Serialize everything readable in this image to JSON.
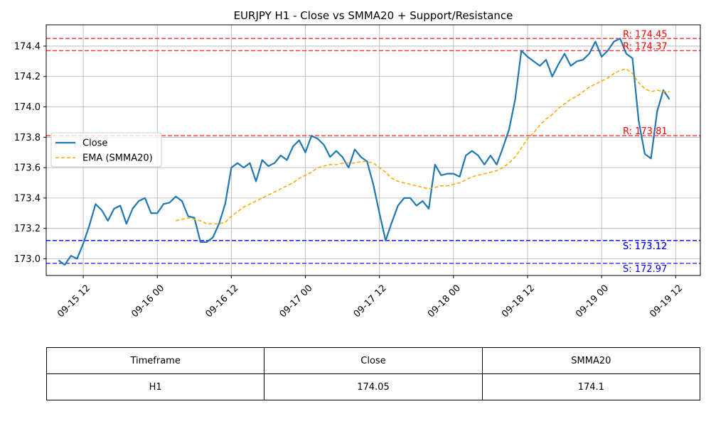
{
  "chart_data": {
    "type": "line",
    "title": "EURJPY H1 - Close vs SMMA20 + Support/Resistance",
    "xlabel": "",
    "ylabel": "",
    "x_range": [
      "2025-09-15 06:00",
      "2025-09-19 16:00"
    ],
    "ylim": [
      172.89,
      174.54
    ],
    "grid": true,
    "legend_position": "center-left",
    "x_tick_labels": [
      "09-15 12",
      "09-16 00",
      "09-16 12",
      "09-17 00",
      "09-17 12",
      "09-18 00",
      "09-18 12",
      "09-19 00",
      "09-19 12"
    ],
    "x_ticks": [
      "2025-09-15 12:00",
      "2025-09-16 00:00",
      "2025-09-16 12:00",
      "2025-09-17 00:00",
      "2025-09-17 12:00",
      "2025-09-18 00:00",
      "2025-09-18 12:00",
      "2025-09-19 00:00",
      "2025-09-19 12:00"
    ],
    "y_ticks": [
      173.0,
      173.2,
      173.4,
      173.6,
      173.8,
      174.0,
      174.2,
      174.4
    ],
    "y_tick_labels": [
      "173.0",
      "173.2",
      "173.4",
      "173.6",
      "173.8",
      "174.0",
      "174.2",
      "174.4"
    ],
    "series": [
      {
        "name": "Close",
        "color": "#1f77b4",
        "style": "solid",
        "x": [
          "2025-09-15 08:00",
          "2025-09-15 09:00",
          "2025-09-15 10:00",
          "2025-09-15 11:00",
          "2025-09-15 12:00",
          "2025-09-15 13:00",
          "2025-09-15 14:00",
          "2025-09-15 15:00",
          "2025-09-15 16:00",
          "2025-09-15 17:00",
          "2025-09-15 18:00",
          "2025-09-15 19:00",
          "2025-09-15 20:00",
          "2025-09-15 21:00",
          "2025-09-15 22:00",
          "2025-09-15 23:00",
          "2025-09-16 00:00",
          "2025-09-16 01:00",
          "2025-09-16 02:00",
          "2025-09-16 03:00",
          "2025-09-16 04:00",
          "2025-09-16 05:00",
          "2025-09-16 06:00",
          "2025-09-16 07:00",
          "2025-09-16 08:00",
          "2025-09-16 09:00",
          "2025-09-16 10:00",
          "2025-09-16 11:00",
          "2025-09-16 12:00",
          "2025-09-16 13:00",
          "2025-09-16 14:00",
          "2025-09-16 15:00",
          "2025-09-16 16:00",
          "2025-09-16 17:00",
          "2025-09-16 18:00",
          "2025-09-16 19:00",
          "2025-09-16 20:00",
          "2025-09-16 21:00",
          "2025-09-16 22:00",
          "2025-09-16 23:00",
          "2025-09-17 00:00",
          "2025-09-17 01:00",
          "2025-09-17 02:00",
          "2025-09-17 03:00",
          "2025-09-17 04:00",
          "2025-09-17 05:00",
          "2025-09-17 06:00",
          "2025-09-17 07:00",
          "2025-09-17 08:00",
          "2025-09-17 09:00",
          "2025-09-17 10:00",
          "2025-09-17 11:00",
          "2025-09-17 12:00",
          "2025-09-17 13:00",
          "2025-09-17 14:00",
          "2025-09-17 15:00",
          "2025-09-17 16:00",
          "2025-09-17 17:00",
          "2025-09-17 18:00",
          "2025-09-17 19:00",
          "2025-09-17 20:00",
          "2025-09-17 21:00",
          "2025-09-17 22:00",
          "2025-09-17 23:00",
          "2025-09-18 00:00",
          "2025-09-18 01:00",
          "2025-09-18 02:00",
          "2025-09-18 03:00",
          "2025-09-18 04:00",
          "2025-09-18 05:00",
          "2025-09-18 06:00",
          "2025-09-18 07:00",
          "2025-09-18 08:00",
          "2025-09-18 09:00",
          "2025-09-18 10:00",
          "2025-09-18 11:00",
          "2025-09-18 12:00",
          "2025-09-18 13:00",
          "2025-09-18 14:00",
          "2025-09-18 15:00",
          "2025-09-18 16:00",
          "2025-09-18 17:00",
          "2025-09-18 18:00",
          "2025-09-18 19:00",
          "2025-09-18 20:00",
          "2025-09-18 21:00",
          "2025-09-18 22:00",
          "2025-09-18 23:00",
          "2025-09-19 00:00",
          "2025-09-19 01:00",
          "2025-09-19 02:00",
          "2025-09-19 03:00",
          "2025-09-19 04:00",
          "2025-09-19 05:00",
          "2025-09-19 06:00",
          "2025-09-19 07:00",
          "2025-09-19 08:00",
          "2025-09-19 09:00",
          "2025-09-19 10:00",
          "2025-09-19 11:00"
        ],
        "values": [
          172.99,
          172.96,
          173.02,
          173.0,
          173.1,
          173.22,
          173.36,
          173.32,
          173.25,
          173.33,
          173.35,
          173.23,
          173.33,
          173.38,
          173.4,
          173.3,
          173.3,
          173.36,
          173.37,
          173.41,
          173.38,
          173.28,
          173.27,
          173.11,
          173.11,
          173.14,
          173.23,
          173.36,
          173.6,
          173.63,
          173.6,
          173.63,
          173.51,
          173.65,
          173.61,
          173.63,
          173.68,
          173.65,
          173.74,
          173.78,
          173.7,
          173.81,
          173.79,
          173.75,
          173.67,
          173.71,
          173.67,
          173.6,
          173.72,
          173.67,
          173.64,
          173.49,
          173.3,
          173.12,
          173.24,
          173.35,
          173.4,
          173.4,
          173.35,
          173.38,
          173.33,
          173.62,
          173.55,
          173.56,
          173.56,
          173.54,
          173.68,
          173.71,
          173.68,
          173.62,
          173.68,
          173.62,
          173.73,
          173.85,
          174.05,
          174.37,
          174.33,
          174.3,
          174.27,
          174.31,
          174.2,
          174.28,
          174.35,
          174.27,
          174.3,
          174.31,
          174.35,
          174.43,
          174.33,
          174.37,
          174.43,
          174.45,
          174.35,
          174.32,
          173.91,
          173.69,
          173.66,
          173.97,
          174.11,
          174.05
        ]
      },
      {
        "name": "EMA (SMMA20)",
        "color": "#ffa500",
        "style": "dashed",
        "x": [
          "2025-09-16 03:00",
          "2025-09-16 04:00",
          "2025-09-16 05:00",
          "2025-09-16 06:00",
          "2025-09-16 07:00",
          "2025-09-16 08:00",
          "2025-09-16 09:00",
          "2025-09-16 10:00",
          "2025-09-16 11:00",
          "2025-09-16 12:00",
          "2025-09-16 13:00",
          "2025-09-16 14:00",
          "2025-09-16 15:00",
          "2025-09-16 16:00",
          "2025-09-16 17:00",
          "2025-09-16 18:00",
          "2025-09-16 19:00",
          "2025-09-16 20:00",
          "2025-09-16 21:00",
          "2025-09-16 22:00",
          "2025-09-16 23:00",
          "2025-09-17 00:00",
          "2025-09-17 01:00",
          "2025-09-17 02:00",
          "2025-09-17 03:00",
          "2025-09-17 04:00",
          "2025-09-17 05:00",
          "2025-09-17 06:00",
          "2025-09-17 07:00",
          "2025-09-17 08:00",
          "2025-09-17 09:00",
          "2025-09-17 10:00",
          "2025-09-17 11:00",
          "2025-09-17 12:00",
          "2025-09-17 13:00",
          "2025-09-17 14:00",
          "2025-09-17 15:00",
          "2025-09-17 16:00",
          "2025-09-17 17:00",
          "2025-09-17 18:00",
          "2025-09-17 19:00",
          "2025-09-17 20:00",
          "2025-09-17 21:00",
          "2025-09-17 22:00",
          "2025-09-17 23:00",
          "2025-09-18 00:00",
          "2025-09-18 01:00",
          "2025-09-18 02:00",
          "2025-09-18 03:00",
          "2025-09-18 04:00",
          "2025-09-18 05:00",
          "2025-09-18 06:00",
          "2025-09-18 07:00",
          "2025-09-18 08:00",
          "2025-09-18 09:00",
          "2025-09-18 10:00",
          "2025-09-18 11:00",
          "2025-09-18 12:00",
          "2025-09-18 13:00",
          "2025-09-18 14:00",
          "2025-09-18 15:00",
          "2025-09-18 16:00",
          "2025-09-18 17:00",
          "2025-09-18 18:00",
          "2025-09-18 19:00",
          "2025-09-18 20:00",
          "2025-09-18 21:00",
          "2025-09-18 22:00",
          "2025-09-18 23:00",
          "2025-09-19 00:00",
          "2025-09-19 01:00",
          "2025-09-19 02:00",
          "2025-09-19 03:00",
          "2025-09-19 04:00",
          "2025-09-19 05:00",
          "2025-09-19 06:00",
          "2025-09-19 07:00",
          "2025-09-19 08:00",
          "2025-09-19 09:00",
          "2025-09-19 10:00",
          "2025-09-19 11:00"
        ],
        "values": [
          173.25,
          173.26,
          173.27,
          173.26,
          173.25,
          173.23,
          173.23,
          173.23,
          173.24,
          173.28,
          173.31,
          173.34,
          173.36,
          173.38,
          173.4,
          173.42,
          173.44,
          173.46,
          173.48,
          173.5,
          173.53,
          173.55,
          173.57,
          173.6,
          173.61,
          173.62,
          173.62,
          173.63,
          173.63,
          173.63,
          173.64,
          173.64,
          173.63,
          173.6,
          173.57,
          173.53,
          173.51,
          173.5,
          173.49,
          173.48,
          173.47,
          173.46,
          173.47,
          173.48,
          173.48,
          173.49,
          173.5,
          173.52,
          173.54,
          173.55,
          173.56,
          173.57,
          173.58,
          173.6,
          173.63,
          173.67,
          173.73,
          173.79,
          173.83,
          173.88,
          173.92,
          173.95,
          173.99,
          174.02,
          174.05,
          174.07,
          174.1,
          174.13,
          174.15,
          174.17,
          174.19,
          174.22,
          174.24,
          174.25,
          174.22,
          174.16,
          174.12,
          174.1,
          174.11,
          174.1,
          174.1
        ]
      }
    ],
    "levels": [
      {
        "kind": "resistance",
        "value": 174.45,
        "label": "R: 174.45",
        "color": "#ff0000",
        "style": "dashed"
      },
      {
        "kind": "resistance",
        "value": 174.37,
        "label": "R: 174.37",
        "color": "#ff0000",
        "style": "dashed"
      },
      {
        "kind": "resistance",
        "value": 173.81,
        "label": "R: 173.81",
        "color": "#ff0000",
        "style": "dashed"
      },
      {
        "kind": "support",
        "value": 173.12,
        "label": "S: 173.12",
        "color": "#0000ff",
        "style": "dashed"
      },
      {
        "kind": "support",
        "value": 173.12,
        "label": "S: 173.12",
        "color": "#0000ff",
        "style": "dashed"
      },
      {
        "kind": "support",
        "value": 172.97,
        "label": "S: 172.97",
        "color": "#0000ff",
        "style": "dashed"
      }
    ],
    "table": {
      "headers": [
        "Timeframe",
        "Close",
        "SMMA20"
      ],
      "rows": [
        [
          "H1",
          "174.05",
          "174.1"
        ]
      ]
    }
  }
}
